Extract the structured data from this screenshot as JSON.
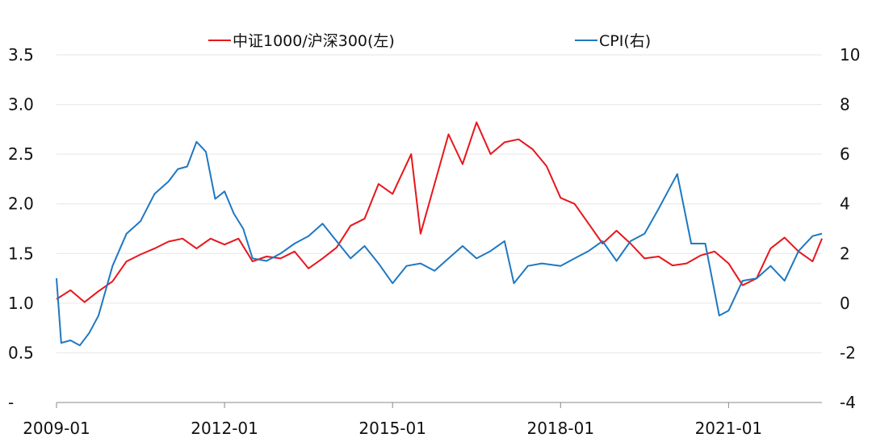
{
  "chart_data": {
    "type": "line",
    "title": "",
    "x_ticks": [
      "2009-01",
      "2012-01",
      "2015-01",
      "2018-01",
      "2021-01"
    ],
    "left_axis": {
      "ticks": [
        "-",
        "0.5",
        "1.0",
        "1.5",
        "2.0",
        "2.5",
        "3.0",
        "3.5"
      ],
      "ylim": [
        0,
        3.5
      ]
    },
    "right_axis": {
      "ticks": [
        "-4",
        "-2",
        "0",
        "2",
        "4",
        "6",
        "8",
        "10"
      ],
      "ylim": [
        -4,
        10
      ]
    },
    "grid": true,
    "legend_position": "top",
    "series": [
      {
        "name": "中证1000/沪深300(左)",
        "axis": "left",
        "color": "#e8161b",
        "x": [
          "2009-01",
          "2009-04",
          "2009-07",
          "2009-10",
          "2010-01",
          "2010-04",
          "2010-07",
          "2010-10",
          "2011-01",
          "2011-04",
          "2011-07",
          "2011-10",
          "2012-01",
          "2012-04",
          "2012-07",
          "2012-10",
          "2013-01",
          "2013-04",
          "2013-07",
          "2013-10",
          "2014-01",
          "2014-04",
          "2014-07",
          "2014-10",
          "2015-01",
          "2015-03",
          "2015-05",
          "2015-07",
          "2015-10",
          "2016-01",
          "2016-04",
          "2016-07",
          "2016-10",
          "2017-01",
          "2017-04",
          "2017-07",
          "2017-10",
          "2018-01",
          "2018-04",
          "2018-07",
          "2018-10",
          "2019-01",
          "2019-04",
          "2019-07",
          "2019-10",
          "2020-01",
          "2020-04",
          "2020-07",
          "2020-10",
          "2021-01",
          "2021-04",
          "2021-07",
          "2021-10",
          "2022-01",
          "2022-04",
          "2022-07",
          "2022-09"
        ],
        "values": [
          1.04,
          1.13,
          1.01,
          1.12,
          1.22,
          1.42,
          1.49,
          1.55,
          1.62,
          1.65,
          1.55,
          1.65,
          1.59,
          1.65,
          1.42,
          1.47,
          1.45,
          1.52,
          1.35,
          1.45,
          1.56,
          1.78,
          1.85,
          2.2,
          2.1,
          2.3,
          2.5,
          1.7,
          2.2,
          2.7,
          2.4,
          2.82,
          2.5,
          2.62,
          2.65,
          2.55,
          2.38,
          2.06,
          2.0,
          1.8,
          1.6,
          1.73,
          1.6,
          1.45,
          1.47,
          1.38,
          1.4,
          1.48,
          1.52,
          1.4,
          1.18,
          1.25,
          1.55,
          1.66,
          1.52,
          1.42,
          1.65
        ]
      },
      {
        "name": "CPI(右)",
        "axis": "right",
        "color": "#1f78c1",
        "x": [
          "2009-01",
          "2009-02",
          "2009-04",
          "2009-06",
          "2009-08",
          "2009-10",
          "2010-01",
          "2010-04",
          "2010-07",
          "2010-10",
          "2011-01",
          "2011-03",
          "2011-05",
          "2011-07",
          "2011-09",
          "2011-11",
          "2012-01",
          "2012-03",
          "2012-05",
          "2012-07",
          "2012-10",
          "2013-01",
          "2013-04",
          "2013-07",
          "2013-10",
          "2014-01",
          "2014-04",
          "2014-07",
          "2014-10",
          "2015-01",
          "2015-04",
          "2015-07",
          "2015-10",
          "2016-01",
          "2016-04",
          "2016-07",
          "2016-10",
          "2017-01",
          "2017-03",
          "2017-06",
          "2017-09",
          "2018-01",
          "2018-04",
          "2018-07",
          "2018-10",
          "2019-01",
          "2019-04",
          "2019-07",
          "2019-10",
          "2019-12",
          "2020-02",
          "2020-05",
          "2020-08",
          "2020-11",
          "2021-01",
          "2021-04",
          "2021-07",
          "2021-10",
          "2022-01",
          "2022-04",
          "2022-07",
          "2022-09"
        ],
        "values": [
          1.0,
          -1.6,
          -1.5,
          -1.7,
          -1.2,
          -0.5,
          1.5,
          2.8,
          3.3,
          4.4,
          4.9,
          5.4,
          5.5,
          6.5,
          6.1,
          4.2,
          4.5,
          3.6,
          3.0,
          1.8,
          1.7,
          2.0,
          2.4,
          2.7,
          3.2,
          2.5,
          1.8,
          2.3,
          1.6,
          0.8,
          1.5,
          1.6,
          1.3,
          1.8,
          2.3,
          1.8,
          2.1,
          2.5,
          0.8,
          1.5,
          1.6,
          1.5,
          1.8,
          2.1,
          2.5,
          1.7,
          2.5,
          2.8,
          3.8,
          4.5,
          5.2,
          2.4,
          2.4,
          -0.5,
          -0.3,
          0.9,
          1.0,
          1.5,
          0.9,
          2.1,
          2.7,
          2.8
        ]
      }
    ]
  }
}
